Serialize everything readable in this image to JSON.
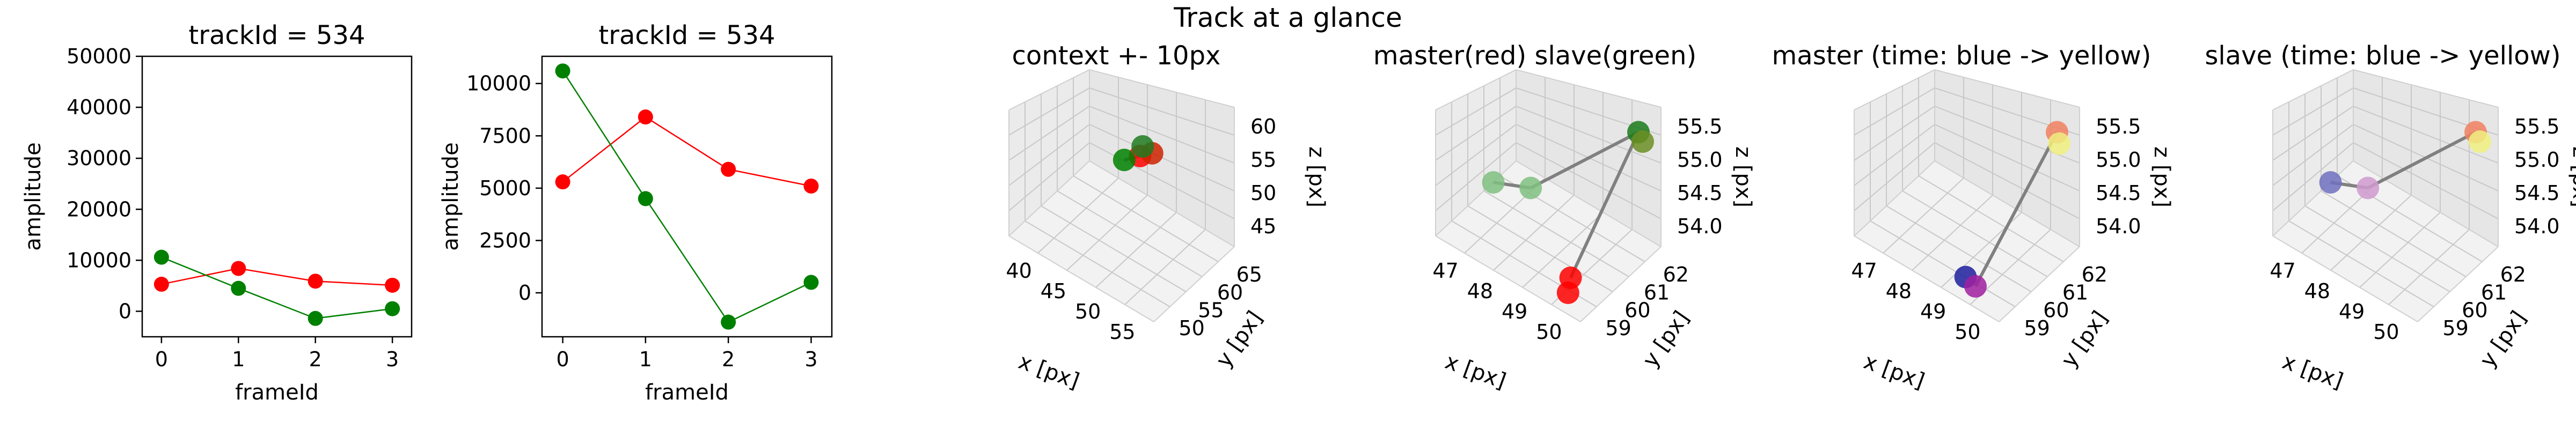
{
  "suptitle": "Track at a glance",
  "chart_data": [
    {
      "type": "line",
      "title": "trackId = 534",
      "xlabel": "frameId",
      "ylabel": "amplitude",
      "x": [
        0,
        1,
        2,
        3
      ],
      "xticks": [
        "0",
        "1",
        "2",
        "3"
      ],
      "xlim": [
        -0.25,
        3.25
      ],
      "ylim": [
        -5000,
        50000
      ],
      "yticks": [
        "0",
        "10000",
        "20000",
        "30000",
        "40000",
        "50000"
      ],
      "ytick_values": [
        0,
        10000,
        20000,
        30000,
        40000,
        50000
      ],
      "series": [
        {
          "values": [
            5300,
            8400,
            5900,
            5100
          ],
          "color": "#ff0000"
        },
        {
          "values": [
            10600,
            4500,
            -1400,
            500
          ],
          "color": "#008000"
        }
      ]
    },
    {
      "type": "line",
      "title": "trackId = 534",
      "xlabel": "frameId",
      "ylabel": "amplitude",
      "x": [
        0,
        1,
        2,
        3
      ],
      "xticks": [
        "0",
        "1",
        "2",
        "3"
      ],
      "xlim": [
        -0.25,
        3.25
      ],
      "ylim": [
        -2100,
        11300
      ],
      "yticks": [
        "0",
        "2500",
        "5000",
        "7500",
        "10000"
      ],
      "ytick_values": [
        0,
        2500,
        5000,
        7500,
        10000
      ],
      "series": [
        {
          "values": [
            5300,
            8400,
            5900,
            5100
          ],
          "color": "#ff0000"
        },
        {
          "values": [
            10600,
            4500,
            -1400,
            500
          ],
          "color": "#008000"
        }
      ]
    },
    {
      "type": "scatter3d",
      "title": "context +- 10px",
      "xlabel": "x [px]",
      "ylabel": "y [px]",
      "zlabel": "z [px]",
      "xticks": [
        "40",
        "45",
        "50",
        "55"
      ],
      "yticks": [
        "50",
        "55",
        "60",
        "65"
      ],
      "zticks": [
        "45",
        "50",
        "55",
        "60"
      ],
      "points": [
        {
          "x": 48.5,
          "y": 60.0,
          "z": 55.0,
          "color": "#ff0000"
        },
        {
          "x": 49.5,
          "y": 61.0,
          "z": 55.5,
          "color": "#cc2200"
        },
        {
          "x": 47.0,
          "y": 59.0,
          "z": 54.0,
          "color": "#008000"
        },
        {
          "x": 48.0,
          "y": 61.5,
          "z": 55.2,
          "color": "#1e7a1e"
        }
      ]
    },
    {
      "type": "scatter3d",
      "title": "master(red) slave(green)",
      "xlabel": "x [px]",
      "ylabel": "y [px]",
      "zlabel": "z [px]",
      "xticks": [
        "47",
        "48",
        "49",
        "50"
      ],
      "yticks": [
        "59",
        "60",
        "61",
        "62"
      ],
      "zticks": [
        "54.0",
        "54.5",
        "55.0",
        "55.5"
      ],
      "points": [
        {
          "x": 49.8,
          "y": 59.2,
          "z": 54.1,
          "color": "#ff0000"
        },
        {
          "x": 49.9,
          "y": 58.9,
          "z": 54.0,
          "color": "#ff0000"
        },
        {
          "x": 47.3,
          "y": 60.1,
          "z": 54.4,
          "color": "#80c080"
        },
        {
          "x": 48.1,
          "y": 60.4,
          "z": 54.5,
          "color": "#80c080"
        },
        {
          "x": 50.0,
          "y": 62.0,
          "z": 55.5,
          "color": "#1a7a1a"
        },
        {
          "x": 50.0,
          "y": 62.2,
          "z": 55.3,
          "color": "#6b8e23"
        }
      ]
    },
    {
      "type": "scatter3d",
      "title": "master (time: blue -> yellow)",
      "xlabel": "x [px]",
      "ylabel": "y [px]",
      "zlabel": "z [px]",
      "xticks": [
        "47",
        "48",
        "49",
        "50"
      ],
      "yticks": [
        "59",
        "60",
        "61",
        "62"
      ],
      "zticks": [
        "54.0",
        "54.5",
        "55.0",
        "55.5"
      ],
      "points": [
        {
          "x": 49.3,
          "y": 59.0,
          "z": 54.0,
          "color": "#1f1f9f"
        },
        {
          "x": 49.5,
          "y": 59.1,
          "z": 53.9,
          "color": "#a020a0"
        },
        {
          "x": 50.0,
          "y": 62.0,
          "z": 55.5,
          "color": "#f08060"
        },
        {
          "x": 50.0,
          "y": 62.1,
          "z": 55.3,
          "color": "#f0f080"
        }
      ]
    },
    {
      "type": "scatter3d",
      "title": "slave (time: blue -> yellow)",
      "xlabel": "x [px]",
      "ylabel": "y [px]",
      "zlabel": "z [px]",
      "xticks": [
        "47",
        "48",
        "49",
        "50"
      ],
      "yticks": [
        "59",
        "60",
        "61",
        "62"
      ],
      "zticks": [
        "54.0",
        "54.5",
        "55.0",
        "55.5"
      ],
      "points": [
        {
          "x": 47.3,
          "y": 60.1,
          "z": 54.4,
          "color": "#7070c0"
        },
        {
          "x": 48.1,
          "y": 60.4,
          "z": 54.5,
          "color": "#d09ad0"
        },
        {
          "x": 50.0,
          "y": 62.0,
          "z": 55.5,
          "color": "#f08060"
        },
        {
          "x": 50.0,
          "y": 62.2,
          "z": 55.3,
          "color": "#f0f080"
        }
      ]
    }
  ]
}
